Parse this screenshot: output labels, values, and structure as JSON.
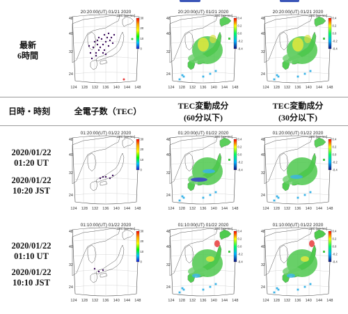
{
  "header": {
    "col_datetime": "日時・時刻",
    "col_tec": "全電子数（TEC）",
    "col_tec60_line1": "TEC変動成分",
    "col_tec60_line2": "(60分以下)",
    "col_tec30_line1": "TEC変動成分",
    "col_tec30_line2": "(30分以下)"
  },
  "latest": {
    "line1": "最新",
    "line2": "6時間"
  },
  "rows": [
    {
      "date": "2020/01/22",
      "ut": "01:20 UT",
      "date2": "2020/01/22",
      "jst": "10:20 JST"
    },
    {
      "date": "2020/01/22",
      "ut": "01:10 UT",
      "date2": "2020/01/22",
      "jst": "10:10 JST"
    }
  ],
  "maps": {
    "latest_time": "20:20:00(UT)  01/21 2020",
    "row1_time": "01:20:00(UT)  01/22 2020",
    "row2_time": "01:10:00(UT)  01/22 2020",
    "tec_label": "TEC [10¹⁶/m²]",
    "lat_ticks": [
      "48",
      "40",
      "32",
      "24"
    ],
    "lon_ticks": [
      "124",
      "128",
      "132",
      "136",
      "140",
      "144",
      "148"
    ],
    "lon_ticks_sparse": [
      "124",
      "128",
      "132",
      "136",
      "140",
      "144",
      "148"
    ],
    "colorbar_ticks_tec": [
      "30",
      "20",
      "10",
      "0"
    ],
    "colorbar_ticks_var": [
      "0.4",
      "0.2",
      "0.0",
      "-0.2",
      "-0.4"
    ]
  },
  "colors": {
    "separator": "#9a9a9a",
    "tab_accent": "#3a55b8",
    "map_green": "#46c846",
    "map_yellow": "#e8e83a",
    "map_cyan": "#3ab4e8",
    "map_blue": "#3a46c8",
    "dot_purple": "#3a0a5a"
  }
}
